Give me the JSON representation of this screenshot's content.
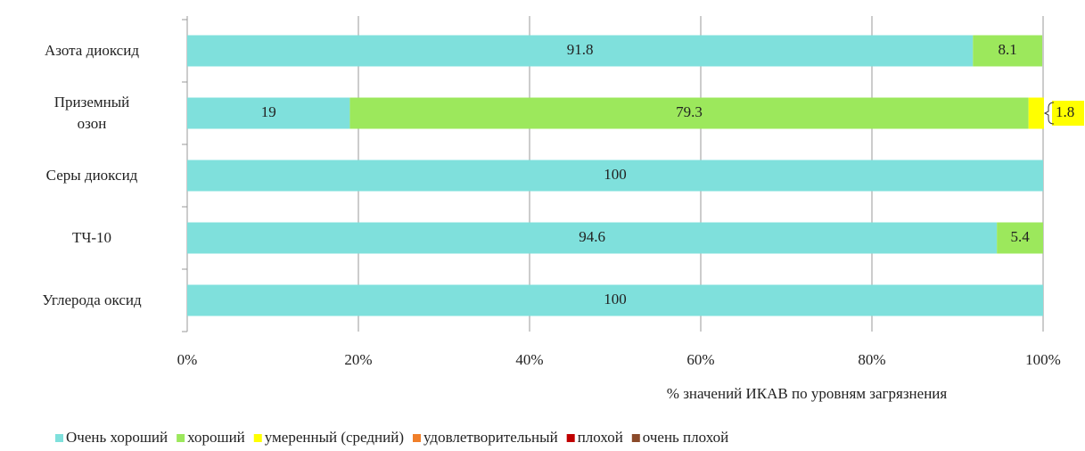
{
  "chart_data": {
    "type": "stacked_barh",
    "categories": [
      "Азота диоксид",
      "Приземный\nозон",
      "Серы диоксид",
      "ТЧ-10",
      "Углерода оксид"
    ],
    "series": [
      {
        "name": "Очень хороший",
        "color": "#7fe0dc",
        "values": [
          91.8,
          19,
          100,
          94.6,
          100
        ]
      },
      {
        "name": "хороший",
        "color": "#9ce85c",
        "values": [
          8.1,
          79.3,
          null,
          5.4,
          null
        ]
      },
      {
        "name": "умеренный (средний)",
        "color": "#ffff00",
        "values": [
          null,
          1.8,
          null,
          null,
          null
        ]
      },
      {
        "name": "удовлетворительный",
        "color": "#f07f2a",
        "values": [
          null,
          null,
          null,
          null,
          null
        ]
      },
      {
        "name": "плохой",
        "color": "#c00000",
        "values": [
          null,
          null,
          null,
          null,
          null
        ]
      },
      {
        "name": "очень плохой",
        "color": "#8b4a2a",
        "values": [
          null,
          null,
          null,
          null,
          null
        ]
      }
    ],
    "xlabel": "% значений ИКАВ по уровням загрязнения",
    "xlim": [
      0,
      100
    ],
    "xticks": [
      {
        "value": 0,
        "label": "0%"
      },
      {
        "value": 20,
        "label": "20%"
      },
      {
        "value": 40,
        "label": "40%"
      },
      {
        "value": 60,
        "label": "60%"
      },
      {
        "value": 80,
        "label": "80%"
      },
      {
        "value": 100,
        "label": "100%"
      }
    ],
    "grid": true,
    "legend": "bottom"
  }
}
